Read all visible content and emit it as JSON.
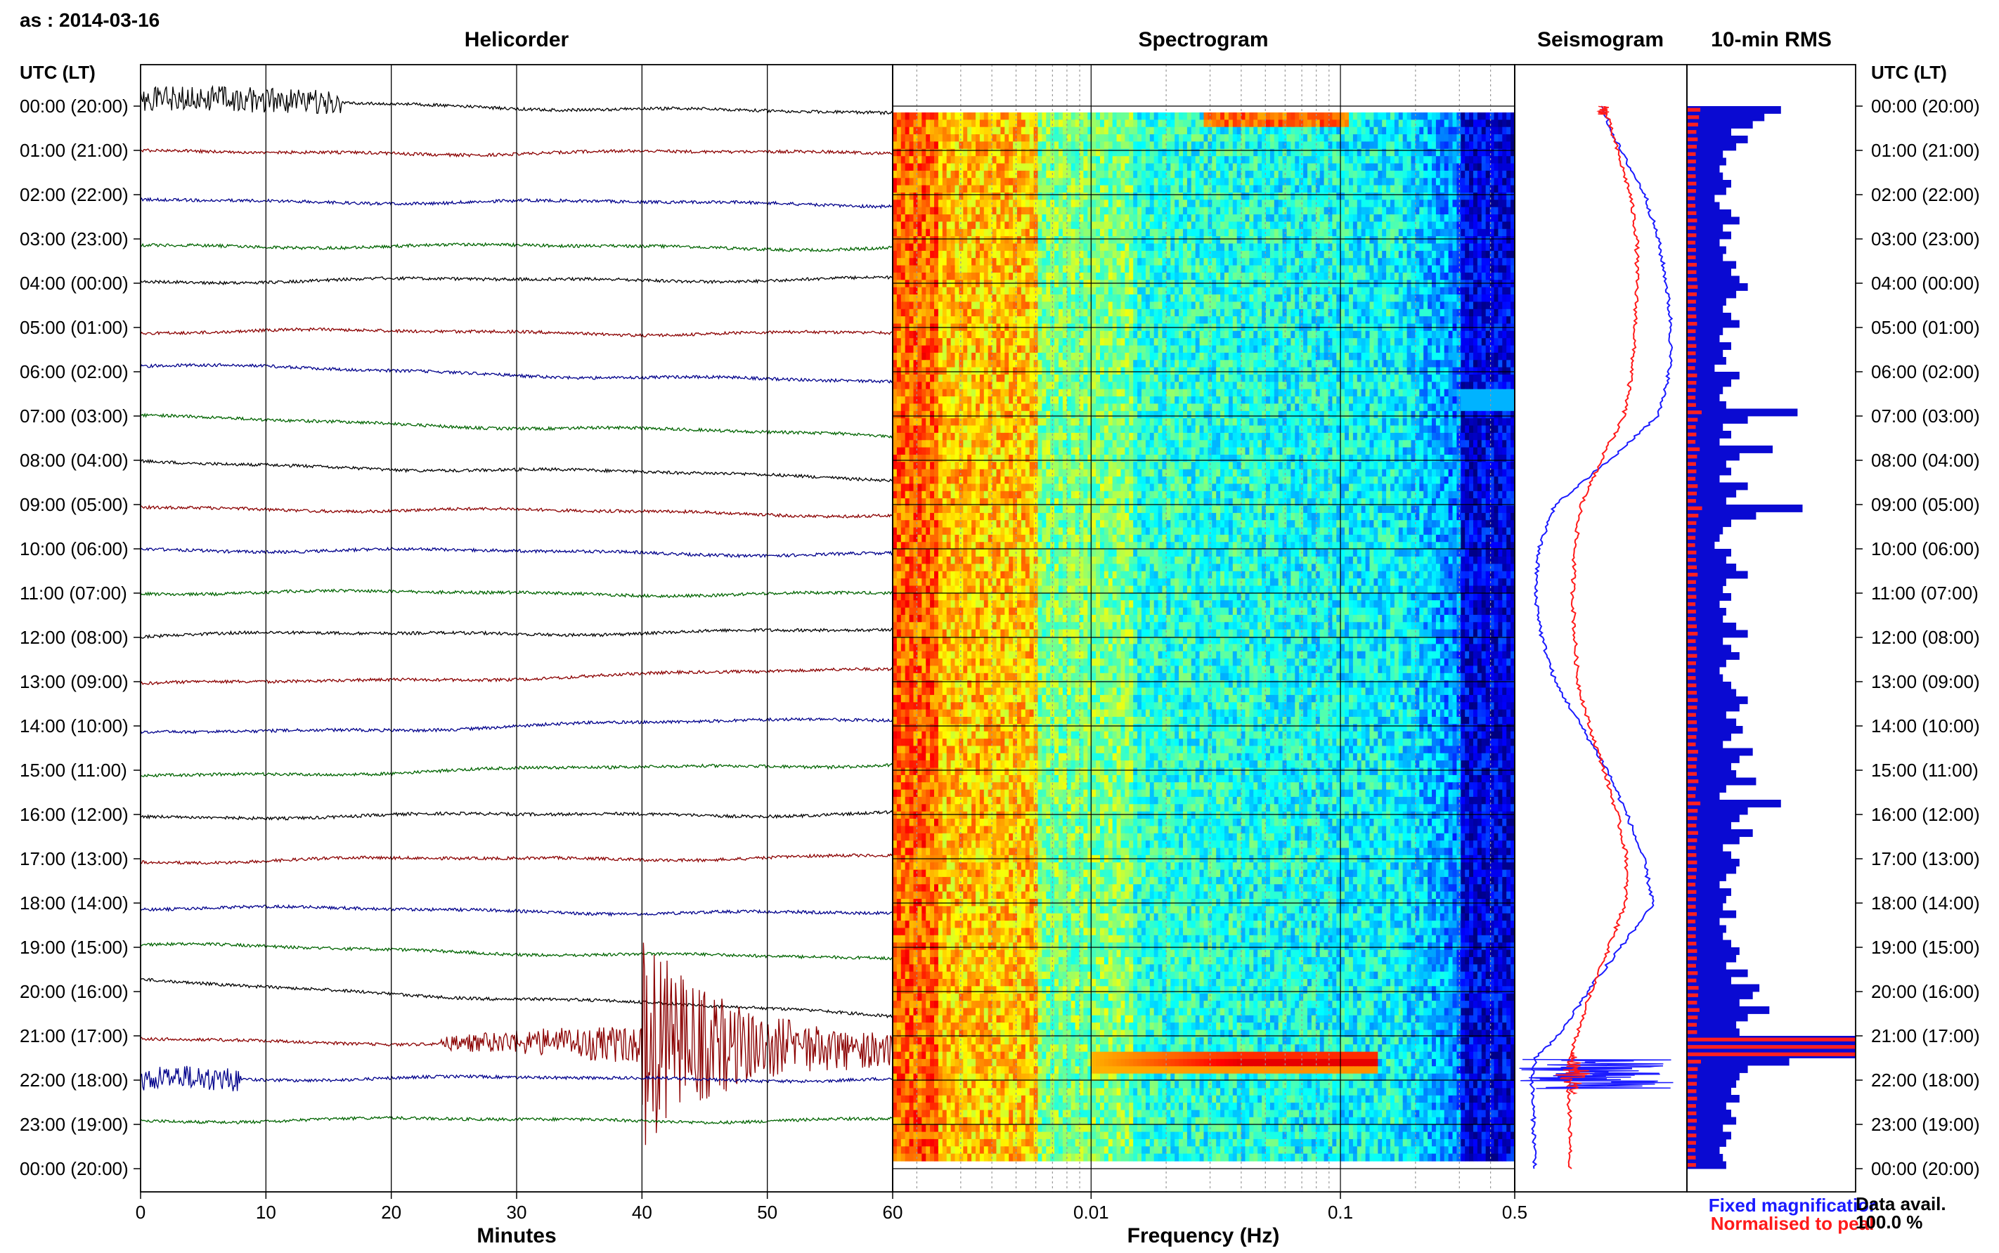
{
  "header": {
    "station_date": "as : 2014-03-16"
  },
  "panels": {
    "helicorder": "Helicorder",
    "spectrogram": "Spectrogram",
    "seismogram": "Seismogram",
    "rms": "10-min RMS"
  },
  "axis_labels": {
    "left_time": "UTC (LT)",
    "right_time": "UTC (LT)",
    "minutes": "Minutes",
    "frequency": "Frequency (Hz)"
  },
  "legend": {
    "fixed": "Fixed magnificatior",
    "fixed_color": "#1a1aff",
    "normalised": "Normalised to peal",
    "normalised_color": "#ff1a1a"
  },
  "data_avail": {
    "label": "Data avail.",
    "value": "100.0 %"
  },
  "colors": {
    "trace_cycle": [
      "#000000",
      "#8b0000",
      "#00008b",
      "#006400"
    ],
    "seis_fixed": "#1a1aff",
    "seis_norm": "#ff1a1a",
    "rms_fixed": "#0a0ad2",
    "rms_norm": "#ff2020"
  },
  "chart_data": {
    "type": "heatmap",
    "time_labels": [
      "00:00 (20:00)",
      "01:00 (21:00)",
      "02:00 (22:00)",
      "03:00 (23:00)",
      "04:00 (00:00)",
      "05:00 (01:00)",
      "06:00 (02:00)",
      "07:00 (03:00)",
      "08:00 (04:00)",
      "09:00 (05:00)",
      "10:00 (06:00)",
      "11:00 (07:00)",
      "12:00 (08:00)",
      "13:00 (09:00)",
      "14:00 (10:00)",
      "15:00 (11:00)",
      "16:00 (12:00)",
      "17:00 (13:00)",
      "18:00 (14:00)",
      "19:00 (15:00)",
      "20:00 (16:00)",
      "21:00 (17:00)",
      "22:00 (18:00)",
      "23:00 (19:00)",
      "00:00 (20:00)"
    ],
    "minutes_ticks": [
      "0",
      "10",
      "20",
      "30",
      "40",
      "50",
      "60"
    ],
    "minutes_range": [
      0,
      60
    ],
    "frequency_ticks": [
      "0.01",
      "0.1",
      "0.5"
    ],
    "frequency_range_log": [
      0.0016,
      0.5
    ],
    "traces_hours": 24,
    "events": [
      {
        "hour": 0,
        "start_min": 0,
        "end_min": 16,
        "amplitude": "moderate"
      },
      {
        "hour": 21,
        "start_min": 24,
        "end_min": 60,
        "amplitude": "large"
      },
      {
        "hour": 22,
        "start_min": 0,
        "end_min": 8,
        "amplitude": "moderate"
      }
    ],
    "spectrogram_peaks": [
      {
        "hour": 0.1,
        "freq_hz": [
          0.03,
          0.1
        ]
      },
      {
        "hour": 21.6,
        "freq_hz": [
          0.01,
          0.12
        ]
      }
    ],
    "seismogram": {
      "hours": [
        0,
        1,
        2,
        3,
        4,
        5,
        6,
        7,
        8,
        9,
        10,
        11,
        12,
        13,
        14,
        15,
        16,
        17,
        18,
        19,
        20,
        21,
        21.5,
        22,
        23,
        24
      ],
      "fixed": [
        0.5,
        0.62,
        0.77,
        0.85,
        0.9,
        0.93,
        0.92,
        0.85,
        0.55,
        0.22,
        0.12,
        0.1,
        0.14,
        0.22,
        0.38,
        0.54,
        0.66,
        0.76,
        0.82,
        0.62,
        0.42,
        0.24,
        0.1,
        0.08,
        0.09,
        0.1
      ],
      "normalised": [
        0.52,
        0.6,
        0.68,
        0.72,
        0.72,
        0.71,
        0.69,
        0.64,
        0.5,
        0.38,
        0.34,
        0.33,
        0.34,
        0.36,
        0.43,
        0.52,
        0.6,
        0.66,
        0.65,
        0.55,
        0.44,
        0.35,
        0.31,
        0.3,
        0.31,
        0.31
      ],
      "event_hour": 21.85
    },
    "rms": {
      "interval_min": 10,
      "values": [
        0.55,
        0.45,
        0.38,
        0.25,
        0.35,
        0.28,
        0.2,
        0.22,
        0.18,
        0.2,
        0.25,
        0.22,
        0.15,
        0.18,
        0.25,
        0.3,
        0.2,
        0.25,
        0.18,
        0.22,
        0.2,
        0.28,
        0.25,
        0.3,
        0.35,
        0.28,
        0.22,
        0.2,
        0.25,
        0.3,
        0.2,
        0.18,
        0.25,
        0.2,
        0.22,
        0.15,
        0.3,
        0.25,
        0.2,
        0.18,
        0.22,
        0.65,
        0.35,
        0.2,
        0.25,
        0.18,
        0.5,
        0.3,
        0.22,
        0.25,
        0.18,
        0.35,
        0.28,
        0.22,
        0.68,
        0.4,
        0.25,
        0.2,
        0.18,
        0.15,
        0.25,
        0.22,
        0.28,
        0.35,
        0.22,
        0.2,
        0.25,
        0.18,
        0.22,
        0.2,
        0.28,
        0.35,
        0.2,
        0.25,
        0.3,
        0.22,
        0.18,
        0.2,
        0.25,
        0.28,
        0.35,
        0.3,
        0.22,
        0.28,
        0.32,
        0.25,
        0.2,
        0.38,
        0.3,
        0.25,
        0.28,
        0.4,
        0.22,
        0.18,
        0.55,
        0.35,
        0.3,
        0.25,
        0.38,
        0.3,
        0.2,
        0.25,
        0.3,
        0.28,
        0.22,
        0.18,
        0.25,
        0.22,
        0.2,
        0.28,
        0.18,
        0.22,
        0.2,
        0.25,
        0.3,
        0.28,
        0.22,
        0.35,
        0.25,
        0.42,
        0.38,
        0.3,
        0.48,
        0.35,
        0.28,
        0.3,
        1.0,
        1.0,
        1.0,
        0.6,
        0.35,
        0.3,
        0.28,
        0.25,
        0.3,
        0.22,
        0.25,
        0.28,
        0.2,
        0.25,
        0.22,
        0.18,
        0.2,
        0.22
      ]
    }
  }
}
